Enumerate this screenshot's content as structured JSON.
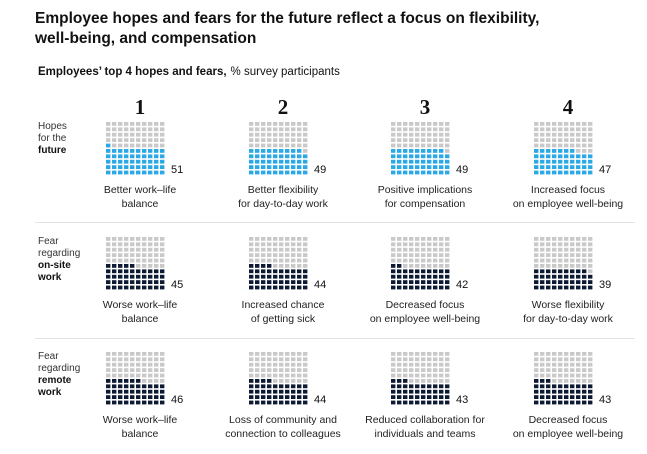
{
  "chart_data": {
    "type": "waffle",
    "title": "Employee hopes and fears for the future reflect a focus on flexibility, well-being, and compensation",
    "subtitle_bold": "Employees’ top 4 hopes and fears,",
    "subtitle": "% survey participants",
    "columns": [
      "1",
      "2",
      "3",
      "4"
    ],
    "empty_color": "#c9c9c9",
    "rows": [
      {
        "label_lines": [
          "Hopes",
          "for the"
        ],
        "label_bold": [
          "future"
        ],
        "color": "#2aa9e6",
        "values": [
          51,
          49,
          49,
          47
        ],
        "labels": [
          [
            "Better work–life",
            "balance"
          ],
          [
            "Better flexibility",
            "for day-to-day work"
          ],
          [
            "Positive implications",
            "for compensation"
          ],
          [
            "Increased focus",
            "on employee well-being"
          ]
        ]
      },
      {
        "label_lines": [
          "Fear",
          "regarding"
        ],
        "label_bold": [
          "on-site",
          "work"
        ],
        "color": "#0c1a33",
        "values": [
          45,
          44,
          42,
          39
        ],
        "labels": [
          [
            "Worse work–life",
            "balance"
          ],
          [
            "Increased chance",
            "of getting sick"
          ],
          [
            "Decreased focus",
            "on employee well-being"
          ],
          [
            "Worse flexibility",
            "for day-to-day work"
          ]
        ]
      },
      {
        "label_lines": [
          "Fear",
          "regarding"
        ],
        "label_bold": [
          "remote",
          "work"
        ],
        "color": "#0c1a33",
        "values": [
          46,
          44,
          43,
          43
        ],
        "labels": [
          [
            "Worse work–life",
            "balance"
          ],
          [
            "Loss of community and",
            "connection to colleagues"
          ],
          [
            "Reduced collaboration for",
            "individuals and teams"
          ],
          [
            "Decreased focus",
            "on employee well-being"
          ]
        ]
      }
    ]
  }
}
